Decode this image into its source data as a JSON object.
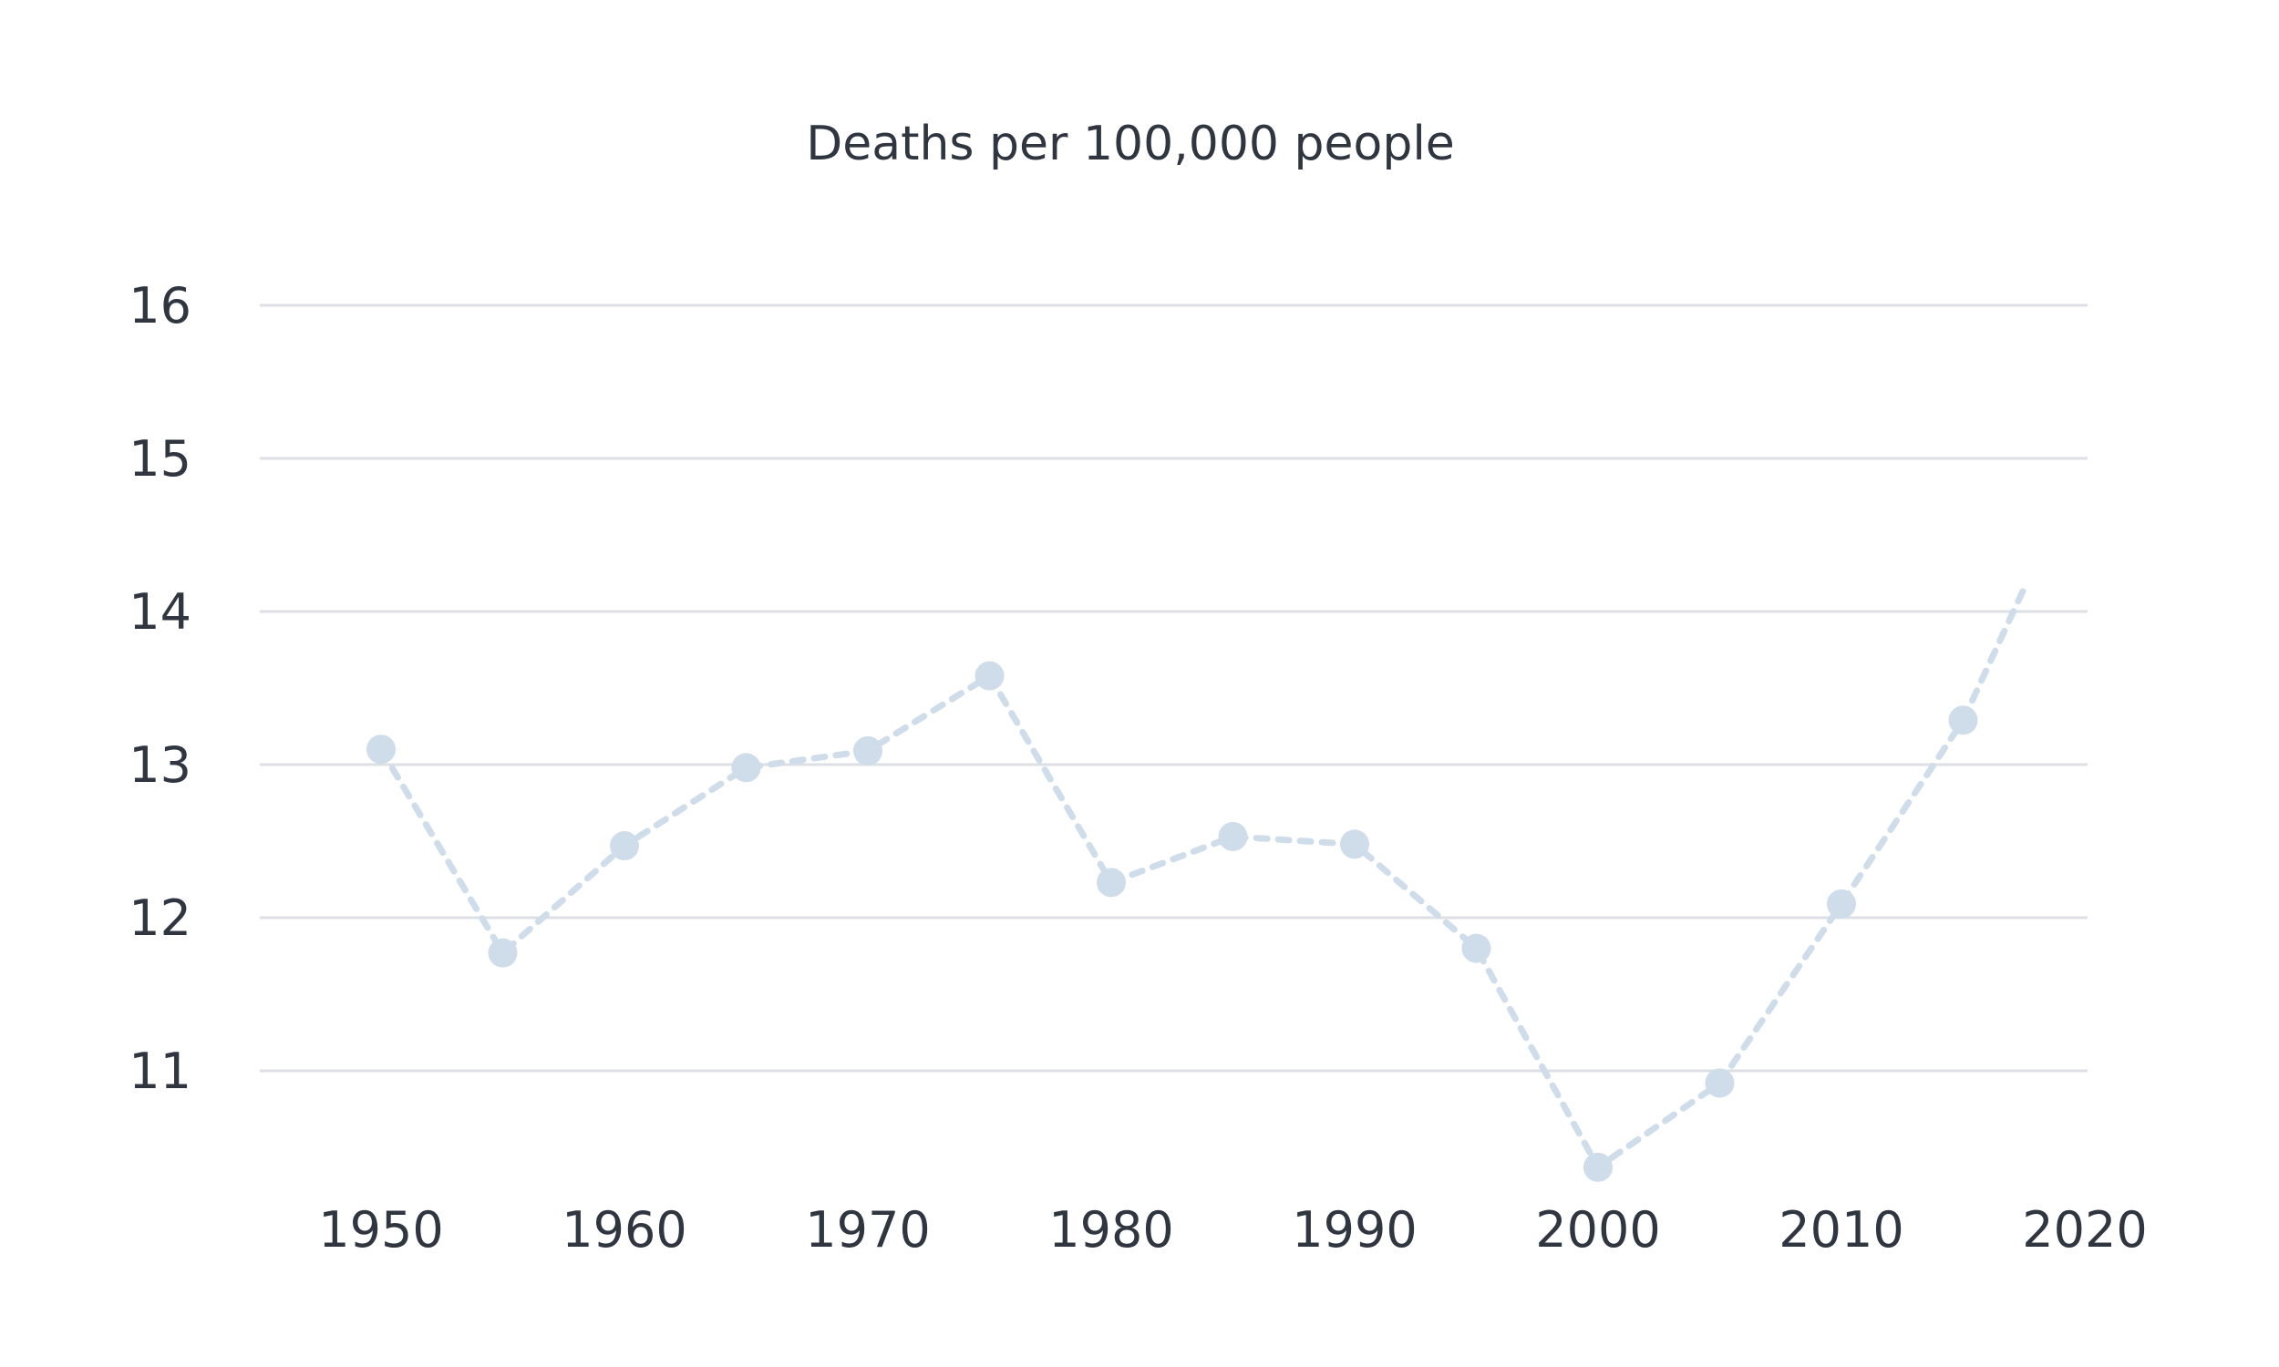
{
  "chart_data": {
    "type": "line",
    "title": "Deaths per 100,000 people",
    "xlabel": "",
    "ylabel": "",
    "xlim": [
      1945,
      2020
    ],
    "ylim": [
      10.3,
      16
    ],
    "x_ticks": [
      1950,
      1960,
      1970,
      1980,
      1990,
      2000,
      2010,
      2020
    ],
    "y_ticks": [
      11,
      12,
      13,
      14,
      15,
      16
    ],
    "grid": "horizontal",
    "series": [
      {
        "color": "#cfdcea",
        "x": [
          1950,
          1955,
          1960,
          1965,
          1970,
          1975,
          1980,
          1985,
          1990,
          1995,
          2000,
          2005,
          2010,
          2015
        ],
        "values": [
          13.1,
          11.77,
          12.47,
          12.98,
          13.09,
          13.58,
          12.23,
          12.53,
          12.48,
          11.8,
          10.37,
          10.92,
          12.09,
          13.29
        ],
        "projected_end": {
          "x": 2017.5,
          "y": 14.15
        }
      }
    ]
  }
}
